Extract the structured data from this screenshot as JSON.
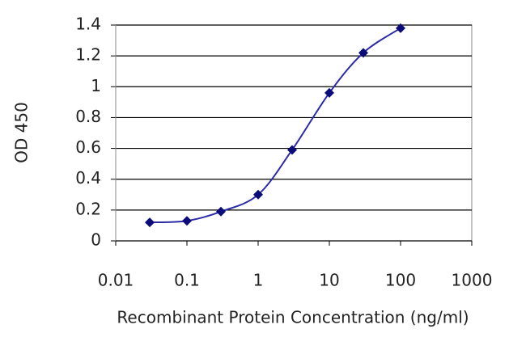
{
  "chart_data": {
    "type": "line",
    "xlabel": "Recombinant Protein Concentration (ng/ml)",
    "ylabel": "OD 450",
    "xscale": "log",
    "x": [
      0.03,
      0.1,
      0.3,
      1,
      3,
      10,
      30,
      100
    ],
    "series": [
      {
        "color": "#2b2ba8",
        "marker_color": "#0b0b7a",
        "values": [
          0.12,
          0.13,
          0.19,
          0.3,
          0.59,
          0.96,
          1.22,
          1.38
        ]
      }
    ],
    "xlim": [
      0.01,
      1000
    ],
    "xticks": [
      0.01,
      0.1,
      1,
      10,
      100,
      1000
    ],
    "ylim": [
      0,
      1.4
    ],
    "yticks": [
      0,
      0.2,
      0.4,
      0.6,
      0.8,
      1,
      1.2,
      1.4
    ],
    "grid": true
  }
}
